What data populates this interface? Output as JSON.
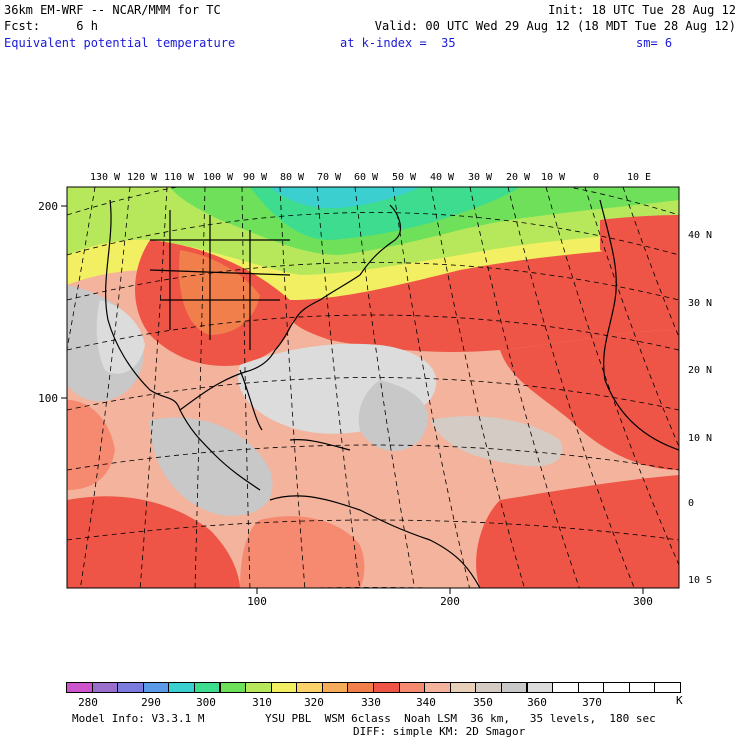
{
  "header": {
    "line1_left": "36km EM-WRF -- NCAR/MMM for TC",
    "line1_right": "Init: 18 UTC Tue 28 Aug 12",
    "line2_left": "Fcst:     6 h",
    "line2_right": "Valid: 00 UTC Wed 29 Aug 12 (18 MDT Tue 28 Aug 12)",
    "field": "Equivalent potential temperature",
    "level": "at k-index =  35",
    "smooth": "sm= 6"
  },
  "map": {
    "lon_labels": [
      "130 W",
      "120 W",
      "110 W",
      "100 W",
      "90 W",
      "80 W",
      "70 W",
      "60 W",
      "50 W",
      "40 W",
      "30 W",
      "20 W",
      "10 W",
      "0",
      "10 E"
    ],
    "lat_labels": [
      "40 N",
      "30 N",
      "20 N",
      "10 N",
      "0",
      "10 S"
    ],
    "grid_x_labels": [
      "100",
      "200",
      "300"
    ],
    "grid_y_labels": [
      "200",
      "100"
    ]
  },
  "colorbar": {
    "colors": [
      "#cc55cc",
      "#9a6fcc",
      "#7b7bdd",
      "#5a9ae6",
      "#3ccfcf",
      "#3ddc8e",
      "#6ee05a",
      "#b7e85c",
      "#f2ef62",
      "#fbd26a",
      "#f6ac5b",
      "#f07f4c",
      "#ee5546",
      "#f58a70",
      "#f3b39c",
      "#e8cfb8",
      "#d4cbc4",
      "#c8c8c8",
      "#dcdcdc",
      "#ffffff",
      "#ffffff",
      "#ffffff",
      "#ffffff",
      "#ffffff"
    ],
    "labels": [
      "280",
      "290",
      "300",
      "310",
      "320",
      "330",
      "340",
      "350",
      "360",
      "370"
    ],
    "unit": "K"
  },
  "footer": {
    "model_info": "Model Info: V3.3.1 M",
    "physics1": "YSU PBL  WSM 6class  Noah LSM  36 km,   35 levels,  180 sec",
    "physics2": "DIFF: simple KM: 2D Smagor"
  }
}
